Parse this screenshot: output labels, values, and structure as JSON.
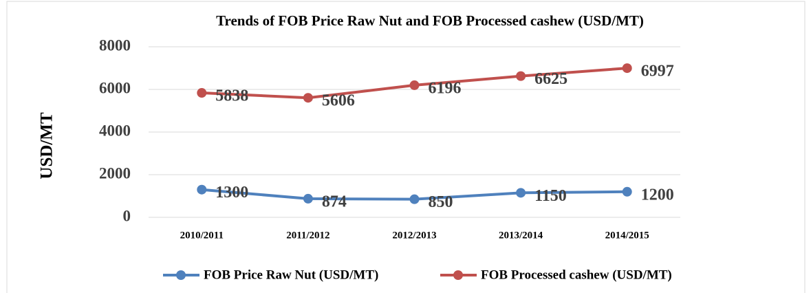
{
  "chart_data": {
    "type": "line",
    "title": "Trends of FOB Price Raw Nut and FOB Processed cashew (USD/MT)",
    "y_label": "USD/MT",
    "categories": [
      "2010/2011",
      "2011/2012",
      "2012/2013",
      "2013/2014",
      "2014/2015"
    ],
    "series": [
      {
        "name": "FOB Price Raw Nut (USD/MT)",
        "color": "#4f81bd",
        "values": [
          1300,
          874,
          850,
          1150,
          1200
        ]
      },
      {
        "name": "FOB Processed cashew (USD/MT)",
        "color": "#c0504d",
        "values": [
          5838,
          5606,
          6196,
          6625,
          6997
        ]
      }
    ],
    "ylim": [
      0,
      8000
    ],
    "yticks": [
      0,
      2000,
      4000,
      6000,
      8000
    ],
    "grid": true,
    "legend": "bottom"
  }
}
